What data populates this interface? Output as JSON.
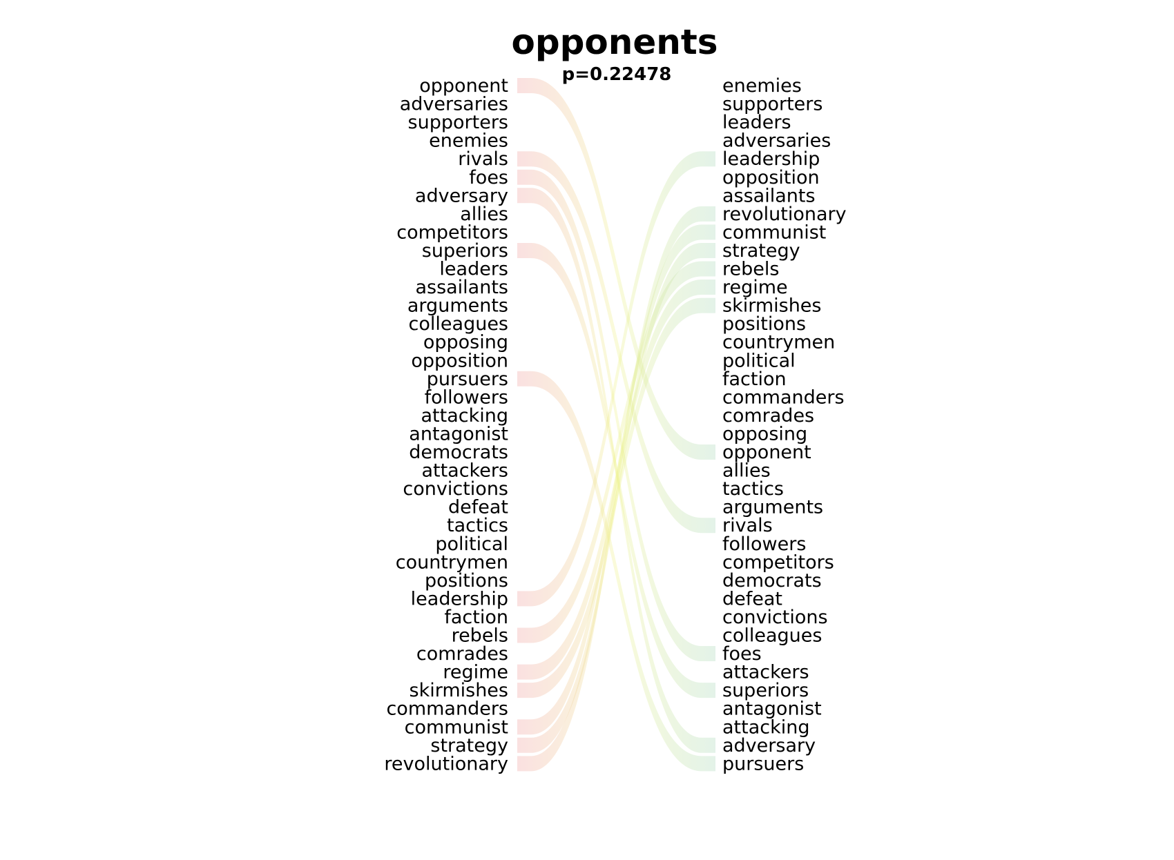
{
  "title": "opponents",
  "subtitle": "p=0.22478",
  "left_words": [
    "opponent",
    "adversaries",
    "supporters",
    "enemies",
    "rivals",
    "foes",
    "adversary",
    "allies",
    "competitors",
    "superiors",
    "leaders",
    "assailants",
    "arguments",
    "colleagues",
    "opposing",
    "opposition",
    "pursuers",
    "followers",
    "attacking",
    "antagonist",
    "democrats",
    "attackers",
    "convictions",
    "defeat",
    "tactics",
    "political",
    "countrymen",
    "positions",
    "leadership",
    "faction",
    "rebels",
    "comrades",
    "regime",
    "skirmishes",
    "commanders",
    "communist",
    "strategy",
    "revolutionary"
  ],
  "right_words": [
    "enemies",
    "supporters",
    "leaders",
    "adversaries",
    "leadership",
    "opposition",
    "assailants",
    "revolutionary",
    "communist",
    "strategy",
    "rebels",
    "regime",
    "skirmishes",
    "positions",
    "countrymen",
    "political",
    "faction",
    "commanders",
    "comrades",
    "opposing",
    "opponent",
    "allies",
    "tactics",
    "arguments",
    "rivals",
    "followers",
    "competitors",
    "democrats",
    "defeat",
    "convictions",
    "colleagues",
    "foes",
    "attackers",
    "superiors",
    "antagonist",
    "attacking",
    "adversary",
    "pursuers"
  ],
  "highlighted_links": [
    "opponent",
    "rivals",
    "foes",
    "adversary",
    "superiors",
    "pursuers",
    "leadership",
    "rebels",
    "regime",
    "skirmishes",
    "communist",
    "strategy",
    "revolutionary"
  ],
  "colors": {
    "left_link": "#f0a0a0",
    "mid_link": "#eef28a",
    "right_link": "#a8d8b8",
    "text": "#000000"
  }
}
